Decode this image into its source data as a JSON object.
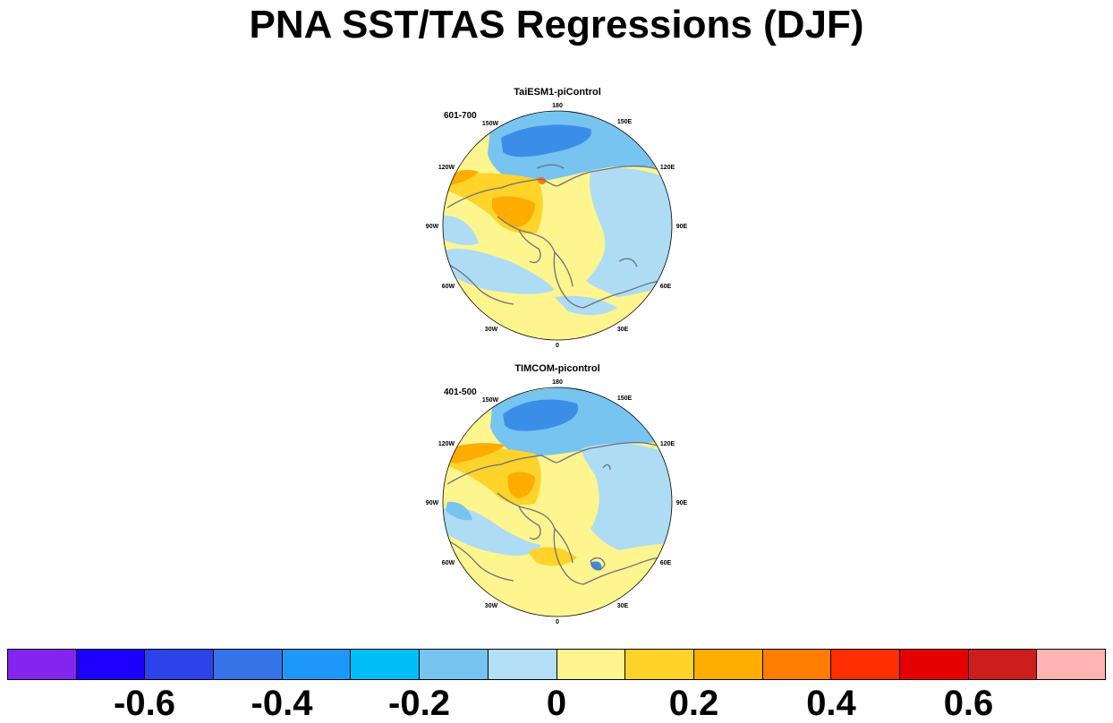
{
  "title": "PNA SST/TAS Regressions (DJF)",
  "panels": [
    {
      "title": "TaiESM1-piControl",
      "period": "601-700",
      "lon_labels": [
        "180",
        "150E",
        "120E",
        "90E",
        "60E",
        "30E",
        "0",
        "30W",
        "60W",
        "90W",
        "120W",
        "150W"
      ],
      "colors": {
        "background": "#fff58f",
        "ocean_neg": "#aedcf5",
        "neg_mid": "#77c4f0",
        "neg_strong": "#3b8ee8",
        "pos_weak": "#ffd32a",
        "pos_mid": "#ffac00",
        "pos_strong": "#ff7d00",
        "coast": "#6e6e7e"
      }
    },
    {
      "title": "TIMCOM-picontrol",
      "period": "401-500",
      "lon_labels": [
        "180",
        "150E",
        "120E",
        "90E",
        "60E",
        "30E",
        "0",
        "30W",
        "60W",
        "90W",
        "120W",
        "150W"
      ],
      "colors": {
        "background": "#fff58f",
        "ocean_neg": "#aedcf5",
        "neg_mid": "#77c4f0",
        "neg_strong": "#3b8ee8",
        "pos_weak": "#ffd32a",
        "pos_mid": "#ffac00",
        "pos_strong": "#ff7d00",
        "coast": "#6e6e7e"
      }
    }
  ],
  "colorbar": {
    "colors": [
      "#8325ee",
      "#1d00fb",
      "#2d43ea",
      "#3574e8",
      "#1e97fb",
      "#00bff8",
      "#77c4f0",
      "#b3def5",
      "#fff58f",
      "#ffd32a",
      "#ffad00",
      "#ff7d00",
      "#ff2e00",
      "#e50000",
      "#cd1e1e",
      "#ffb3b3"
    ],
    "ticks": [
      {
        "label": "-0.6",
        "value": -0.6
      },
      {
        "label": "-0.4",
        "value": -0.4
      },
      {
        "label": "-0.2",
        "value": -0.2
      },
      {
        "label": "0",
        "value": 0
      },
      {
        "label": "0.2",
        "value": 0.2
      },
      {
        "label": "0.4",
        "value": 0.4
      },
      {
        "label": "0.6",
        "value": 0.6
      }
    ],
    "levels": [
      -0.7,
      -0.6,
      -0.5,
      -0.4,
      -0.3,
      -0.2,
      -0.1,
      0,
      0.1,
      0.2,
      0.3,
      0.4,
      0.5,
      0.6,
      0.7
    ]
  }
}
